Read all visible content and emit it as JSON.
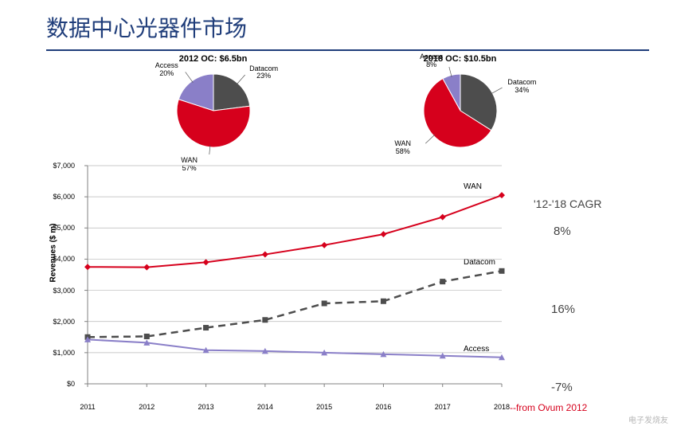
{
  "title": "数据中心光器件市场",
  "colors": {
    "brand": "#1f3d7a",
    "wan": "#d6001c",
    "datacom": "#4d4d4d",
    "access": "#8a7fc8",
    "grid": "#b8b8b8",
    "axis": "#808080",
    "background": "#ffffff"
  },
  "pies": [
    {
      "title": "2012 OC: $6.5bn",
      "total": 6.5,
      "slices": [
        {
          "name": "WAN",
          "pct": 57,
          "color": "#d6001c",
          "label_pos": "right"
        },
        {
          "name": "Datacom",
          "pct": 23,
          "color": "#4d4d4d",
          "label_pos": "bottom-left"
        },
        {
          "name": "Access",
          "pct": 20,
          "color": "#8a7fc8",
          "label_pos": "top-left"
        }
      ]
    },
    {
      "title": "2018 OC: $10.5bn",
      "total": 10.5,
      "slices": [
        {
          "name": "WAN",
          "pct": 58,
          "color": "#d6001c",
          "label_pos": "right"
        },
        {
          "name": "Datacom",
          "pct": 34,
          "color": "#4d4d4d",
          "label_pos": "left"
        },
        {
          "name": "Access",
          "pct": 8,
          "color": "#8a7fc8",
          "label_pos": "top"
        }
      ]
    }
  ],
  "line_chart": {
    "type": "line",
    "y_label": "Revenues ($ m)",
    "x_categories": [
      "2011",
      "2012",
      "2013",
      "2014",
      "2015",
      "2016",
      "2017",
      "2018"
    ],
    "y_min": 0,
    "y_max": 7000,
    "y_tick_step": 1000,
    "y_tick_prefix": "$",
    "y_tick_format": "comma",
    "grid": true,
    "series": [
      {
        "name": "WAN",
        "color": "#d6001c",
        "dash": "solid",
        "marker": "diamond",
        "line_width": 2,
        "values": [
          3750,
          3740,
          3900,
          4150,
          4450,
          4800,
          5350,
          6050
        ]
      },
      {
        "name": "Datacom",
        "color": "#4d4d4d",
        "dash": "dashed",
        "marker": "square",
        "line_width": 2.5,
        "values": [
          1500,
          1520,
          1800,
          2050,
          2580,
          2650,
          3280,
          3620
        ]
      },
      {
        "name": "Access",
        "color": "#8a7fc8",
        "dash": "solid",
        "marker": "triangle",
        "line_width": 2,
        "values": [
          1420,
          1320,
          1080,
          1050,
          1000,
          950,
          900,
          850
        ]
      }
    ]
  },
  "cagr": {
    "header": "'12-'18 CAGR",
    "rows": [
      {
        "series": "WAN",
        "value": "8%"
      },
      {
        "series": "Datacom",
        "value": "16%"
      },
      {
        "series": "Access",
        "value": "-7%"
      }
    ]
  },
  "source_text": "--from Ovum 2012",
  "watermark": "电子发烧友"
}
